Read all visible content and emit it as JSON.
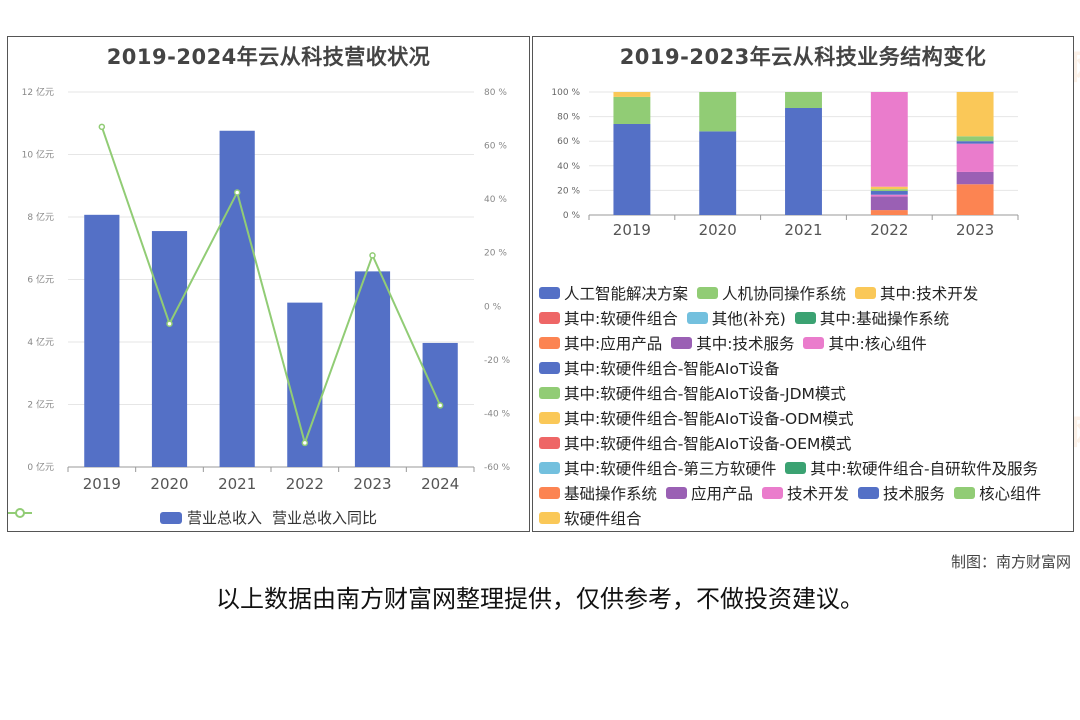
{
  "watermark": "南方财富网",
  "source_credit": "制图：南方财富网",
  "disclaimer": "以上数据由南方财富网整理提供，仅供参考，不做投资建议。",
  "chart_data": [
    {
      "type": "bar",
      "title": "2019-2024年云从科技营收状况",
      "categories": [
        "2019",
        "2020",
        "2021",
        "2022",
        "2023",
        "2024"
      ],
      "y_ticks_left": [
        "0 亿元",
        "2 亿元",
        "4 亿元",
        "6 亿元",
        "8 亿元",
        "10 亿元",
        "12 亿元"
      ],
      "y_ticks_right": [
        "-60 %",
        "-40 %",
        "-20 %",
        "0 %",
        "20 %",
        "40 %",
        "60 %",
        "80 %"
      ],
      "ylim_left": [
        0,
        12
      ],
      "ylim_right": [
        -60,
        80
      ],
      "grid": true,
      "legend_position": "bottom",
      "series": [
        {
          "name": "营业总收入",
          "kind": "bar",
          "axis": "left",
          "color": "#5470c6",
          "values": [
            8.07,
            7.55,
            10.76,
            5.26,
            6.26,
            3.97
          ]
        },
        {
          "name": "营业总收入同比",
          "kind": "line",
          "axis": "right",
          "color": "#91cc75",
          "values": [
            67,
            -6.5,
            42.5,
            -51,
            19,
            -37
          ]
        }
      ]
    },
    {
      "type": "bar",
      "stacked": true,
      "title": "2019-2023年云从科技业务结构变化",
      "categories": [
        "2019",
        "2020",
        "2021",
        "2022",
        "2023"
      ],
      "y_ticks": [
        "0 %",
        "20 %",
        "40 %",
        "60 %",
        "80 %",
        "100 %"
      ],
      "ylim": [
        0,
        100
      ],
      "grid": true,
      "legend_position": "bottom",
      "series": [
        {
          "name": "人工智能解决方案",
          "color": "#5470c6",
          "values": [
            74,
            68,
            87,
            0,
            0
          ]
        },
        {
          "name": "人机协同操作系统",
          "color": "#91cc75",
          "values": [
            22,
            32,
            13,
            0,
            0
          ]
        },
        {
          "name": "其中:技术开发",
          "color": "#fac858",
          "values": [
            4,
            0,
            0,
            0,
            0
          ]
        },
        {
          "name": "其中:软硬件组合",
          "color": "#ee6666",
          "values": [
            0,
            0,
            0,
            0,
            0
          ]
        },
        {
          "name": "其他(补充)",
          "color": "#73c0de",
          "values": [
            0,
            0,
            0,
            0,
            0
          ]
        },
        {
          "name": "其中:基础操作系统",
          "color": "#3ba272",
          "values": [
            0,
            0,
            0,
            0,
            0
          ]
        },
        {
          "name": "其中:应用产品",
          "color": "#fc8452",
          "values": [
            0,
            0,
            0,
            4,
            0
          ]
        },
        {
          "name": "其中:技术服务",
          "color": "#9a60b4",
          "values": [
            0,
            0,
            0,
            11,
            0
          ]
        },
        {
          "name": "其中:核心组件",
          "color": "#ea7ccc",
          "values": [
            0,
            0,
            0,
            1.5,
            0
          ]
        },
        {
          "name": "其中:软硬件组合-智能AIoT设备",
          "color": "#5470c6",
          "values": [
            0,
            0,
            0,
            3,
            0
          ]
        },
        {
          "name": "其中:软硬件组合-智能AIoT设备-JDM模式",
          "color": "#91cc75",
          "values": [
            0,
            0,
            0,
            1.5,
            0
          ]
        },
        {
          "name": "其中:软硬件组合-智能AIoT设备-ODM模式",
          "color": "#fac858",
          "values": [
            0,
            0,
            0,
            2,
            0
          ]
        },
        {
          "name": "其中:软硬件组合-智能AIoT设备-OEM模式",
          "color": "#ee6666",
          "values": [
            0,
            0,
            0,
            0,
            0
          ]
        },
        {
          "name": "其中:软硬件组合-第三方软硬件",
          "color": "#73c0de",
          "values": [
            0,
            0,
            0,
            0,
            0
          ]
        },
        {
          "name": "其中:软硬件组合-自研软件及服务",
          "color": "#3ba272",
          "values": [
            0,
            0,
            0,
            0,
            0
          ]
        },
        {
          "name": "基础操作系统",
          "color": "#fc8452",
          "values": [
            0,
            0,
            0,
            0,
            25
          ]
        },
        {
          "name": "应用产品",
          "color": "#9a60b4",
          "values": [
            0,
            0,
            0,
            0,
            10
          ]
        },
        {
          "name": "技术开发",
          "color": "#ea7ccc",
          "values": [
            0,
            0,
            0,
            77,
            23
          ]
        },
        {
          "name": "技术服务",
          "color": "#5470c6",
          "values": [
            0,
            0,
            0,
            0,
            2
          ]
        },
        {
          "name": "核心组件",
          "color": "#91cc75",
          "values": [
            0,
            0,
            0,
            0,
            4
          ]
        },
        {
          "name": "软硬件组合",
          "color": "#fac858",
          "values": [
            0,
            0,
            0,
            0,
            36
          ]
        }
      ]
    }
  ]
}
